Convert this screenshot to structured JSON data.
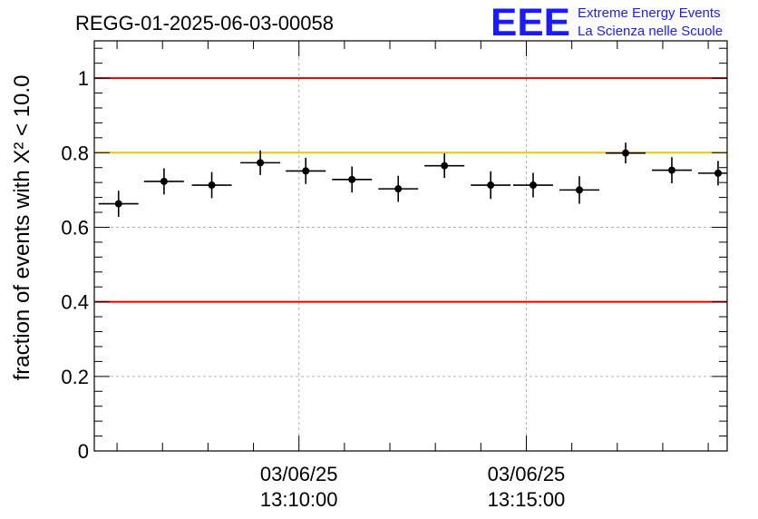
{
  "chart_data": {
    "type": "scatter",
    "title": "REGG-01-2025-06-03-00058",
    "ylabel": "fraction of events with Χ² < 10.0",
    "xlabel": "",
    "ylim": [
      0,
      1.1
    ],
    "yticks": [
      "0",
      "0.2",
      "0.4",
      "0.6",
      "0.8",
      "1"
    ],
    "xticks": [
      {
        "date": "03/06/25",
        "time": "13:10:00",
        "t": 600
      },
      {
        "date": "03/06/25",
        "time": "13:15:00",
        "t": 900
      }
    ],
    "xrange_seconds_from_1300": [
      330,
      1165
    ],
    "grid": true,
    "reference_lines": [
      {
        "y": 1.0,
        "color": "#e00000"
      },
      {
        "y": 0.8,
        "color": "#f5c400"
      },
      {
        "y": 0.4,
        "color": "#e00000"
      }
    ],
    "series": [
      {
        "points": [
          {
            "t": 362,
            "y": 0.663,
            "err": 0.035
          },
          {
            "t": 422,
            "y": 0.723,
            "err": 0.035
          },
          {
            "t": 485,
            "y": 0.713,
            "err": 0.035
          },
          {
            "t": 549,
            "y": 0.773,
            "err": 0.033
          },
          {
            "t": 609,
            "y": 0.751,
            "err": 0.035
          },
          {
            "t": 670,
            "y": 0.728,
            "err": 0.035
          },
          {
            "t": 731,
            "y": 0.703,
            "err": 0.035
          },
          {
            "t": 792,
            "y": 0.765,
            "err": 0.033
          },
          {
            "t": 853,
            "y": 0.713,
            "err": 0.037
          },
          {
            "t": 909,
            "y": 0.713,
            "err": 0.033
          },
          {
            "t": 970,
            "y": 0.7,
            "err": 0.037
          },
          {
            "t": 1031,
            "y": 0.799,
            "err": 0.028
          },
          {
            "t": 1092,
            "y": 0.753,
            "err": 0.035
          },
          {
            "t": 1153,
            "y": 0.745,
            "err": 0.033
          }
        ]
      }
    ]
  },
  "logo": {
    "mark": "EEE",
    "line1": "Extreme Energy Events",
    "line2": "La Scienza nelle Scuole",
    "color": "#1a1aff"
  },
  "colors": {
    "grid": "#b0b0b0",
    "points": "#000000"
  }
}
